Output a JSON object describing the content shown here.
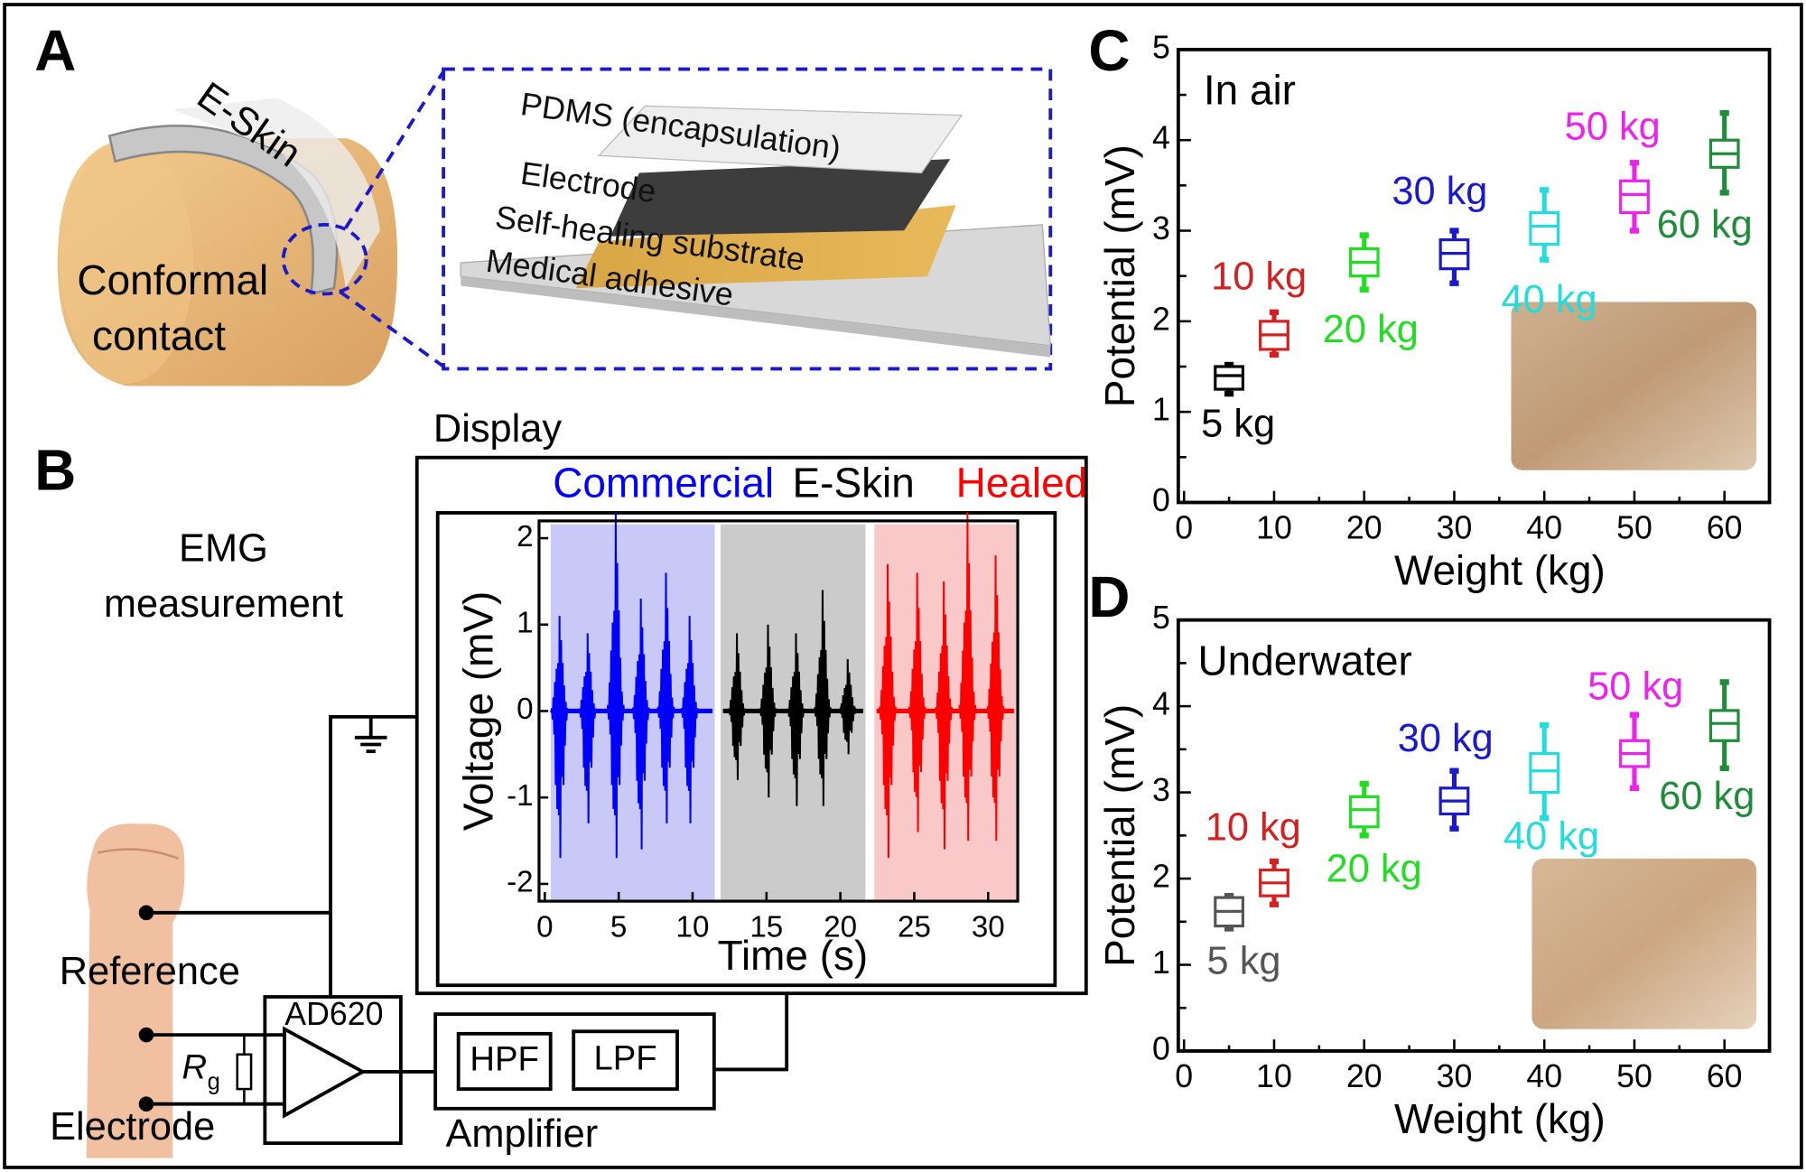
{
  "panel_labels": [
    "A",
    "B",
    "C",
    "D"
  ],
  "panel_a": {
    "eskin_label": "E-Skin",
    "contact_label": [
      "Conformal",
      "contact"
    ],
    "layers": [
      "PDMS (encapsulation)",
      "Electrode",
      "Self-healing substrate",
      "Medical adhesive"
    ]
  },
  "panel_b": {
    "title_lines": [
      "EMG",
      "measurement"
    ],
    "display_label": "Display",
    "reference_label": "Reference",
    "electrode_label": "Electrode",
    "amp_chip": "AD620",
    "resistor": "R",
    "resistor_sub": "g",
    "filters": [
      "HPF",
      "LPF"
    ],
    "amplifier_label": "Amplifier"
  },
  "chart_data": [
    {
      "type": "emg",
      "xlabel": "Time (s)",
      "ylabel": "Voltage (mV)",
      "xlim": [
        0,
        32
      ],
      "xticks": [
        0,
        5,
        10,
        15,
        20,
        25,
        30
      ],
      "ylim": [
        -2.2,
        2.2
      ],
      "yticks": [
        -2,
        -1,
        0,
        1,
        2
      ],
      "series": [
        {
          "name": "Commercial",
          "color": "#0000ff",
          "band_color": "#c9c9f7",
          "x_range": [
            0.4,
            11.5
          ],
          "x": [
            1.0,
            2.9,
            4.8,
            6.5,
            8.2,
            9.8
          ],
          "highs": [
            1.1,
            0.9,
            2.3,
            1.3,
            1.6,
            1.1
          ],
          "lows": [
            -1.7,
            -1.3,
            -1.7,
            -1.6,
            -1.3,
            -1.3
          ]
        },
        {
          "name": "E-Skin",
          "color": "#000000",
          "band_color": "#cbcbcb",
          "x_range": [
            11.9,
            21.7
          ],
          "x": [
            13.0,
            15.1,
            17.0,
            18.8,
            20.5
          ],
          "highs": [
            0.9,
            1.0,
            0.9,
            1.4,
            0.6
          ],
          "lows": [
            -0.8,
            -1.0,
            -1.1,
            -1.1,
            -0.5
          ]
        },
        {
          "name": "Healed",
          "color": "#ff0000",
          "band_color": "#f9c9c9",
          "x_range": [
            22.3,
            31.9
          ],
          "x": [
            23.2,
            25.2,
            27.0,
            28.6,
            30.5
          ],
          "highs": [
            1.7,
            1.6,
            1.5,
            2.3,
            1.8
          ],
          "lows": [
            -1.7,
            -1.4,
            -1.6,
            -1.5,
            -1.5
          ]
        }
      ]
    },
    {
      "type": "box",
      "panel": "C",
      "title": "In air",
      "xlabel": "Weight (kg)",
      "ylabel": "Potential (mV)",
      "xlim": [
        0,
        65
      ],
      "xticks": [
        0,
        10,
        20,
        30,
        40,
        50,
        60
      ],
      "ylim": [
        0,
        5
      ],
      "yticks": [
        0,
        1,
        2,
        3,
        4,
        5
      ],
      "series": [
        {
          "name": "5 kg",
          "color": "#000000",
          "x": 5,
          "min": 1.2,
          "q1": 1.25,
          "median": 1.4,
          "q3": 1.5,
          "max": 1.52
        },
        {
          "name": "10 kg",
          "color": "#d42020",
          "x": 10,
          "min": 1.63,
          "q1": 1.69,
          "median": 1.85,
          "q3": 2.0,
          "max": 2.1
        },
        {
          "name": "20 kg",
          "color": "#22dd22",
          "x": 20,
          "min": 2.35,
          "q1": 2.5,
          "median": 2.65,
          "q3": 2.8,
          "max": 2.95
        },
        {
          "name": "30 kg",
          "color": "#1a1acc",
          "x": 30,
          "min": 2.42,
          "q1": 2.58,
          "median": 2.75,
          "q3": 2.9,
          "max": 3.0
        },
        {
          "name": "40 kg",
          "color": "#22dddd",
          "x": 40,
          "min": 2.68,
          "q1": 2.85,
          "median": 3.05,
          "q3": 3.2,
          "max": 3.45
        },
        {
          "name": "50 kg",
          "color": "#ee22ee",
          "x": 50,
          "min": 3.0,
          "q1": 3.2,
          "median": 3.4,
          "q3": 3.55,
          "max": 3.75
        },
        {
          "name": "60 kg",
          "color": "#1f8c3a",
          "x": 60,
          "min": 3.42,
          "q1": 3.7,
          "median": 3.85,
          "q3": 4.0,
          "max": 4.3
        }
      ]
    },
    {
      "type": "box",
      "panel": "D",
      "title": "Underwater",
      "xlabel": "Weight (kg)",
      "ylabel": "Potential (mV)",
      "xlim": [
        0,
        65
      ],
      "xticks": [
        0,
        10,
        20,
        30,
        40,
        50,
        60
      ],
      "ylim": [
        0,
        5
      ],
      "yticks": [
        0,
        1,
        2,
        3,
        4,
        5
      ],
      "series": [
        {
          "name": "5 kg",
          "color": "#555555",
          "x": 5,
          "min": 1.42,
          "q1": 1.45,
          "median": 1.62,
          "q3": 1.78,
          "max": 1.8
        },
        {
          "name": "10 kg",
          "color": "#d42020",
          "x": 10,
          "min": 1.7,
          "q1": 1.8,
          "median": 1.95,
          "q3": 2.1,
          "max": 2.2
        },
        {
          "name": "20 kg",
          "color": "#22dd22",
          "x": 20,
          "min": 2.5,
          "q1": 2.6,
          "median": 2.8,
          "q3": 2.95,
          "max": 3.1
        },
        {
          "name": "30 kg",
          "color": "#1a1acc",
          "x": 30,
          "min": 2.58,
          "q1": 2.75,
          "median": 2.9,
          "q3": 3.05,
          "max": 3.25
        },
        {
          "name": "40 kg",
          "color": "#22dddd",
          "x": 40,
          "min": 2.7,
          "q1": 3.0,
          "median": 3.25,
          "q3": 3.45,
          "max": 3.78
        },
        {
          "name": "50 kg",
          "color": "#ee22ee",
          "x": 50,
          "min": 3.05,
          "q1": 3.3,
          "median": 3.45,
          "q3": 3.6,
          "max": 3.9
        },
        {
          "name": "60 kg",
          "color": "#1f8c3a",
          "x": 60,
          "min": 3.28,
          "q1": 3.6,
          "median": 3.8,
          "q3": 3.95,
          "max": 4.28
        }
      ]
    }
  ]
}
